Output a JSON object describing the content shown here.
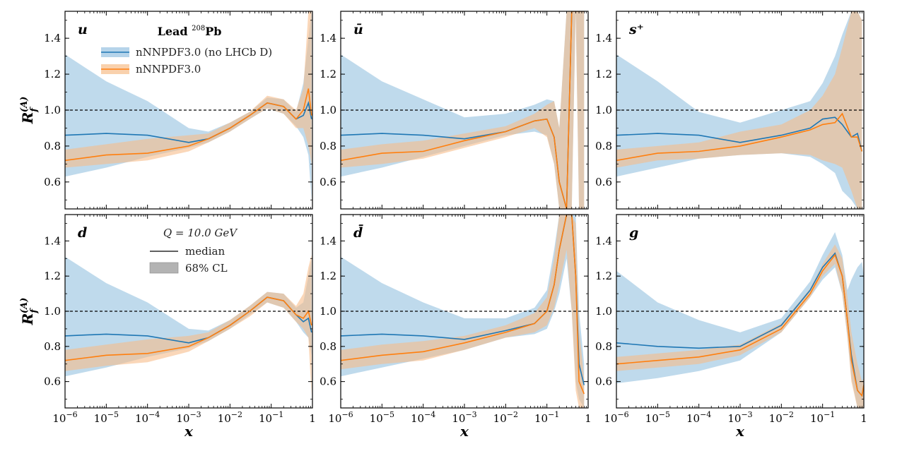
{
  "colors": {
    "blue_band": "#a9cde6",
    "blue_line": "#1f77b4",
    "orange_band": "#f7bd8a",
    "orange_line": "#ff7f0e",
    "overlap_band": "#c4b09b",
    "cl_patch": "#b3b3b3",
    "axis": "#000000",
    "ref_line": "#000000"
  },
  "legend_top": {
    "title": "Lead",
    "title_sup": "208",
    "title_suffix": "Pb",
    "entries": [
      "nNNPDF3.0 (no LHCb D)",
      "nNNPDF3.0"
    ]
  },
  "legend_bottom": {
    "q_label": "Q = 10.0 GeV",
    "entries": [
      "median",
      "68% CL"
    ]
  },
  "axis_labels": {
    "x": "x",
    "y": "R",
    "y_sub": "f",
    "y_sup": "(A)"
  },
  "chart_data": {
    "type": "area",
    "title": "",
    "xlabel": "x",
    "ylabel": "R_f^(A)",
    "xscale": "log",
    "xlim": [
      1e-06,
      1
    ],
    "ylim": [
      0.45,
      1.55
    ],
    "reference_line": 1.0,
    "x_ticks": [
      {
        "label": "10",
        "sup": "−6",
        "value": 1e-06
      },
      {
        "label": "10",
        "sup": "−5",
        "value": 1e-05
      },
      {
        "label": "10",
        "sup": "−4",
        "value": 0.0001
      },
      {
        "label": "10",
        "sup": "−3",
        "value": 0.001
      },
      {
        "label": "10",
        "sup": "−2",
        "value": 0.01
      },
      {
        "label": "10",
        "sup": "−1",
        "value": 0.1
      },
      {
        "label": "1",
        "sup": "",
        "value": 1
      }
    ],
    "y_ticks": [
      "0.6",
      "0.8",
      "1.0",
      "1.2",
      "1.4"
    ],
    "series_names": [
      "nNNPDF3.0 (no LHCb D)",
      "nNNPDF3.0"
    ],
    "panels": [
      {
        "label": "u",
        "x": [
          1e-06,
          1e-05,
          0.0001,
          0.001,
          0.003,
          0.01,
          0.03,
          0.08,
          0.2,
          0.4,
          0.6,
          0.8,
          0.95
        ],
        "series": [
          {
            "name": "nNNPDF3.0 (no LHCb D)",
            "median": [
              0.86,
              0.87,
              0.86,
              0.82,
              0.84,
              0.9,
              0.97,
              1.04,
              1.02,
              0.95,
              0.97,
              1.04,
              0.95
            ],
            "lower": [
              0.63,
              0.68,
              0.74,
              0.79,
              0.82,
              0.88,
              0.95,
              1.01,
              0.98,
              0.91,
              0.85,
              0.75,
              0.5
            ],
            "upper": [
              1.31,
              1.16,
              1.05,
              0.9,
              0.88,
              0.93,
              0.99,
              1.07,
              1.06,
              0.99,
              1.15,
              1.4,
              1.55
            ]
          },
          {
            "name": "nNNPDF3.0",
            "median": [
              0.72,
              0.75,
              0.76,
              0.8,
              0.84,
              0.9,
              0.97,
              1.04,
              1.02,
              0.95,
              1.0,
              1.12,
              0.97
            ],
            "lower": [
              0.68,
              0.7,
              0.72,
              0.77,
              0.82,
              0.88,
              0.95,
              1.01,
              0.98,
              0.9,
              0.9,
              0.8,
              0.7
            ],
            "upper": [
              0.78,
              0.81,
              0.84,
              0.86,
              0.87,
              0.93,
              0.99,
              1.08,
              1.06,
              1.0,
              1.12,
              1.55,
              1.55
            ]
          }
        ]
      },
      {
        "label": "ū",
        "x": [
          1e-06,
          1e-05,
          0.0001,
          0.001,
          0.01,
          0.05,
          0.1,
          0.15,
          0.2,
          0.3,
          0.4,
          0.5,
          0.6,
          0.8
        ],
        "series": [
          {
            "name": "nNNPDF3.0 (no LHCb D)",
            "median": [
              0.86,
              0.87,
              0.86,
              0.84,
              0.88,
              0.94,
              0.95,
              0.85,
              0.6,
              0.45,
              1.55,
              1.55,
              1.55,
              1.55
            ],
            "lower": [
              0.63,
              0.68,
              0.74,
              0.8,
              0.86,
              0.88,
              0.86,
              0.7,
              0.45,
              0.45,
              0.45,
              1.55,
              0.45,
              0.45
            ],
            "upper": [
              1.31,
              1.16,
              1.06,
              0.96,
              0.98,
              1.03,
              1.06,
              1.05,
              0.9,
              1.55,
              1.55,
              1.55,
              1.55,
              1.55
            ]
          },
          {
            "name": "nNNPDF3.0",
            "median": [
              0.72,
              0.76,
              0.77,
              0.83,
              0.88,
              0.94,
              0.95,
              0.85,
              0.6,
              0.45,
              1.55,
              1.55,
              1.55,
              1.55
            ],
            "lower": [
              0.68,
              0.7,
              0.73,
              0.79,
              0.85,
              0.9,
              0.85,
              0.7,
              0.45,
              0.45,
              0.45,
              1.55,
              0.45,
              0.45
            ],
            "upper": [
              0.78,
              0.81,
              0.83,
              0.87,
              0.91,
              0.98,
              1.03,
              1.05,
              0.9,
              1.55,
              1.55,
              1.55,
              1.55,
              1.55
            ]
          }
        ]
      },
      {
        "label": "s⁺",
        "x": [
          1e-06,
          1e-05,
          0.0001,
          0.001,
          0.01,
          0.05,
          0.1,
          0.2,
          0.3,
          0.5,
          0.7,
          0.9
        ],
        "series": [
          {
            "name": "nNNPDF3.0 (no LHCb D)",
            "median": [
              0.86,
              0.87,
              0.86,
              0.82,
              0.86,
              0.9,
              0.95,
              0.96,
              0.92,
              0.85,
              0.87,
              0.77
            ],
            "lower": [
              0.63,
              0.68,
              0.73,
              0.75,
              0.76,
              0.74,
              0.7,
              0.65,
              0.55,
              0.5,
              0.45,
              0.45
            ],
            "upper": [
              1.31,
              1.16,
              0.99,
              0.93,
              1.0,
              1.05,
              1.15,
              1.3,
              1.42,
              1.55,
              1.55,
              1.5
            ]
          },
          {
            "name": "nNNPDF3.0",
            "median": [
              0.72,
              0.76,
              0.77,
              0.8,
              0.85,
              0.89,
              0.92,
              0.93,
              0.98,
              0.85,
              0.85,
              0.77
            ],
            "lower": [
              0.68,
              0.72,
              0.73,
              0.75,
              0.76,
              0.75,
              0.72,
              0.7,
              0.68,
              0.55,
              0.45,
              0.45
            ],
            "upper": [
              0.78,
              0.8,
              0.82,
              0.88,
              0.92,
              1.0,
              1.08,
              1.2,
              1.35,
              1.55,
              1.55,
              1.5
            ]
          }
        ]
      },
      {
        "label": "d",
        "x": [
          1e-06,
          1e-05,
          0.0001,
          0.001,
          0.003,
          0.01,
          0.03,
          0.08,
          0.2,
          0.4,
          0.6,
          0.8,
          0.95
        ],
        "series": [
          {
            "name": "nNNPDF3.0 (no LHCb D)",
            "median": [
              0.86,
              0.87,
              0.86,
              0.82,
              0.85,
              0.92,
              1.0,
              1.08,
              1.06,
              0.98,
              0.94,
              0.96,
              0.88
            ],
            "lower": [
              0.63,
              0.68,
              0.74,
              0.79,
              0.83,
              0.9,
              0.98,
              1.05,
              1.02,
              0.94,
              0.88,
              0.85,
              0.75
            ],
            "upper": [
              1.31,
              1.16,
              1.05,
              0.9,
              0.89,
              0.95,
              1.03,
              1.11,
              1.1,
              1.02,
              1.05,
              1.2,
              1.3
            ]
          },
          {
            "name": "nNNPDF3.0",
            "median": [
              0.72,
              0.75,
              0.76,
              0.8,
              0.85,
              0.92,
              1.0,
              1.08,
              1.06,
              0.98,
              0.96,
              1.0,
              0.92
            ],
            "lower": [
              0.66,
              0.69,
              0.71,
              0.77,
              0.83,
              0.9,
              0.97,
              1.05,
              1.02,
              0.94,
              0.9,
              0.85,
              0.52
            ],
            "upper": [
              0.78,
              0.81,
              0.84,
              0.86,
              0.88,
              0.95,
              1.03,
              1.11,
              1.1,
              1.03,
              1.1,
              1.25,
              1.32
            ]
          }
        ]
      },
      {
        "label": "d̄",
        "x": [
          1e-06,
          1e-05,
          0.0001,
          0.001,
          0.01,
          0.05,
          0.1,
          0.15,
          0.2,
          0.3,
          0.4,
          0.5,
          0.6,
          0.8
        ],
        "series": [
          {
            "name": "nNNPDF3.0 (no LHCb D)",
            "median": [
              0.86,
              0.87,
              0.86,
              0.84,
              0.89,
              0.93,
              1.0,
              1.15,
              1.35,
              1.55,
              1.55,
              1.2,
              0.7,
              0.58
            ],
            "lower": [
              0.63,
              0.68,
              0.73,
              0.78,
              0.85,
              0.87,
              0.9,
              1.0,
              1.1,
              1.3,
              1.0,
              0.6,
              0.5,
              0.45
            ],
            "upper": [
              1.31,
              1.16,
              1.05,
              0.96,
              0.96,
              1.02,
              1.12,
              1.35,
              1.55,
              1.55,
              1.55,
              1.55,
              1.0,
              0.7
            ]
          },
          {
            "name": "nNNPDF3.0",
            "median": [
              0.72,
              0.75,
              0.77,
              0.82,
              0.88,
              0.93,
              1.0,
              1.15,
              1.35,
              1.55,
              1.55,
              1.2,
              0.6,
              0.53
            ],
            "lower": [
              0.67,
              0.7,
              0.72,
              0.78,
              0.85,
              0.88,
              0.92,
              1.02,
              1.15,
              1.35,
              1.0,
              0.55,
              0.45,
              0.45
            ],
            "upper": [
              0.78,
              0.81,
              0.83,
              0.86,
              0.92,
              0.99,
              1.08,
              1.3,
              1.55,
              1.55,
              1.55,
              1.5,
              0.9,
              0.62
            ]
          }
        ]
      },
      {
        "label": "g",
        "x": [
          1e-06,
          1e-05,
          0.0001,
          0.001,
          0.01,
          0.05,
          0.1,
          0.2,
          0.3,
          0.4,
          0.5,
          0.7,
          0.9,
          1.0
        ],
        "series": [
          {
            "name": "nNNPDF3.0 (no LHCb D)",
            "median": [
              0.82,
              0.8,
              0.79,
              0.8,
              0.92,
              1.12,
              1.25,
              1.33,
              1.2,
              0.95,
              0.75,
              0.55,
              0.52,
              0.58
            ],
            "lower": [
              0.59,
              0.62,
              0.66,
              0.72,
              0.88,
              1.08,
              1.18,
              1.25,
              1.1,
              0.85,
              0.62,
              0.45,
              0.45,
              0.45
            ],
            "upper": [
              1.23,
              1.05,
              0.95,
              0.88,
              0.96,
              1.17,
              1.32,
              1.45,
              1.32,
              1.12,
              1.18,
              1.25,
              1.28,
              1.2
            ]
          },
          {
            "name": "nNNPDF3.0",
            "median": [
              0.7,
              0.72,
              0.74,
              0.78,
              0.9,
              1.1,
              1.23,
              1.32,
              1.2,
              0.95,
              0.72,
              0.55,
              0.52,
              0.58
            ],
            "lower": [
              0.66,
              0.68,
              0.7,
              0.75,
              0.88,
              1.08,
              1.2,
              1.27,
              1.1,
              0.85,
              0.6,
              0.45,
              0.45,
              0.45
            ],
            "upper": [
              0.74,
              0.76,
              0.78,
              0.81,
              0.93,
              1.13,
              1.27,
              1.38,
              1.3,
              1.08,
              0.88,
              0.7,
              0.6,
              0.62
            ]
          }
        ]
      }
    ]
  }
}
